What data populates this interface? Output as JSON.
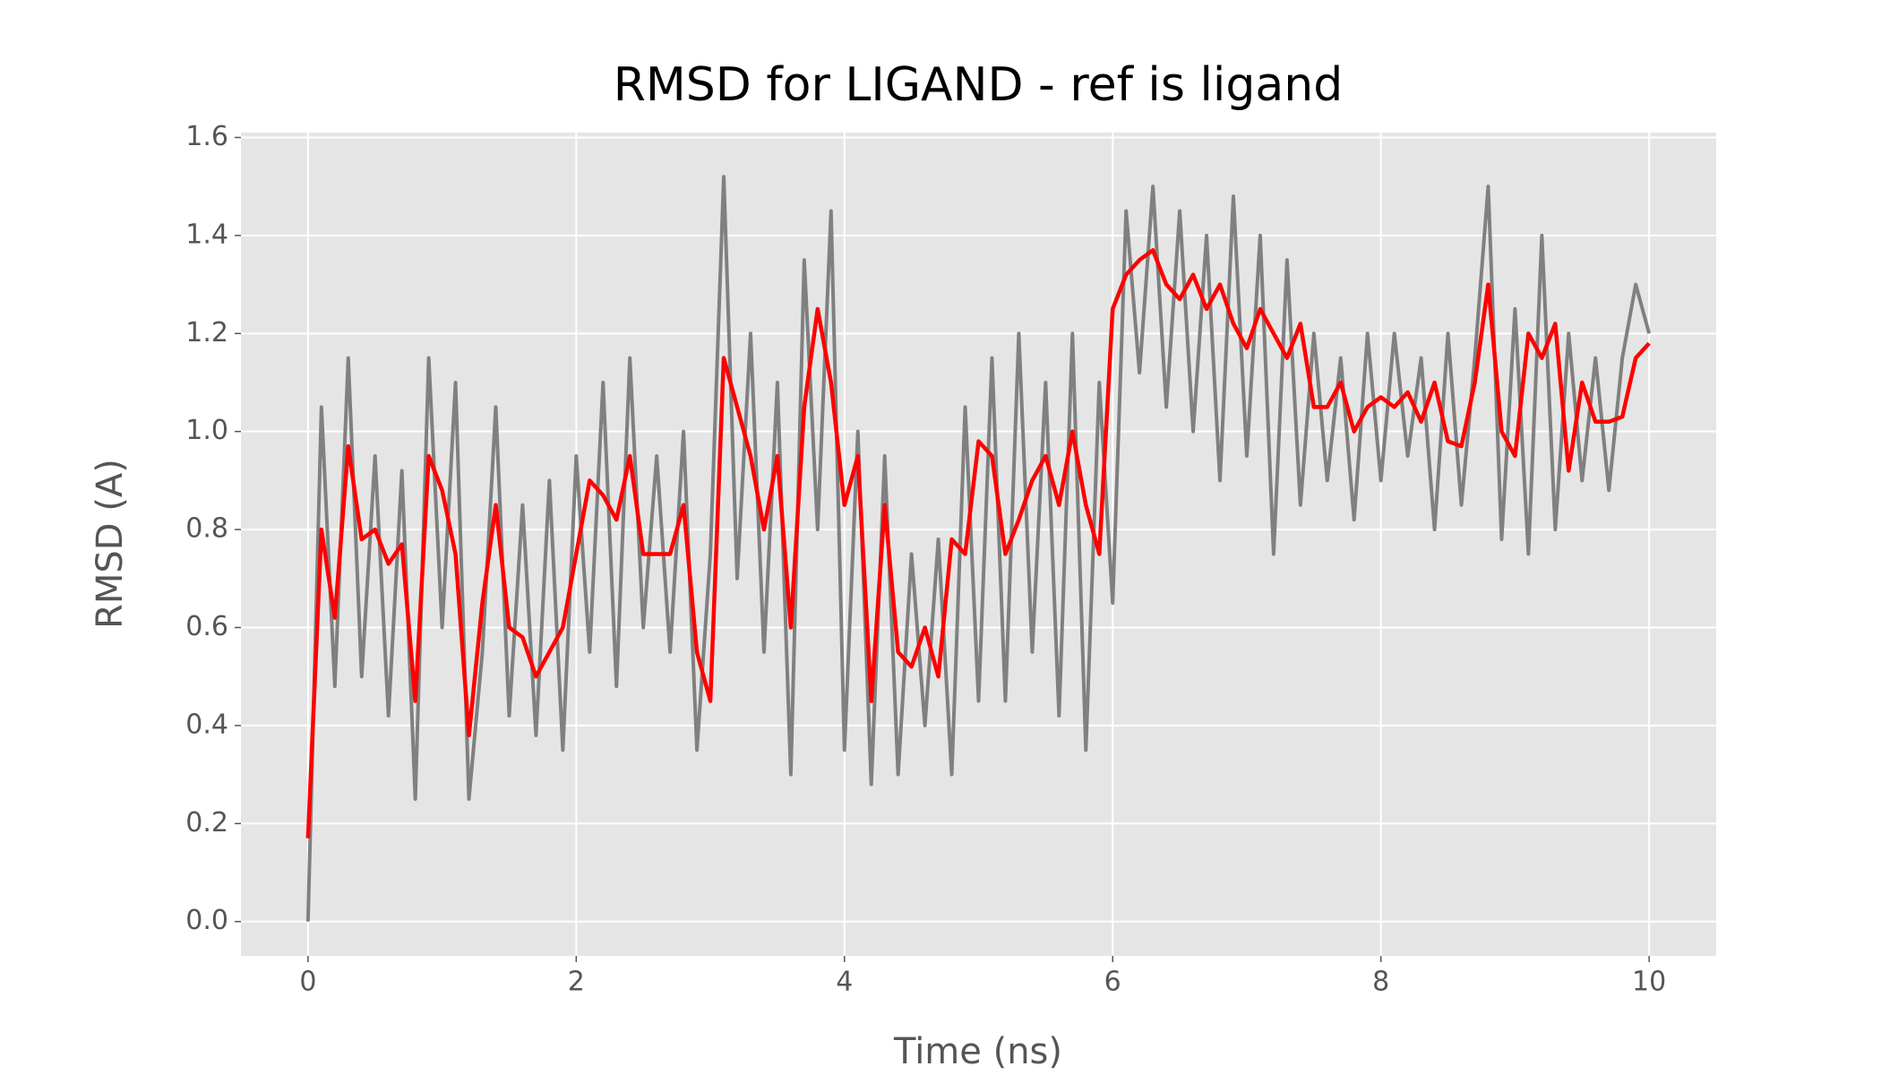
{
  "chart_data": {
    "type": "line",
    "title": "RMSD for LIGAND - ref is ligand",
    "xlabel": "Time (ns)",
    "ylabel": "RMSD (A)",
    "x": [
      0,
      0.1,
      0.2,
      0.3,
      0.4,
      0.5,
      0.6,
      0.7,
      0.8,
      0.9,
      1,
      1.1,
      1.2,
      1.3,
      1.4,
      1.5,
      1.6,
      1.7,
      1.8,
      1.9,
      2,
      2.1,
      2.2,
      2.3,
      2.4,
      2.5,
      2.6,
      2.7,
      2.8,
      2.9,
      3,
      3.1,
      3.2,
      3.3,
      3.4,
      3.5,
      3.6,
      3.7,
      3.8,
      3.9,
      4,
      4.1,
      4.2,
      4.3,
      4.4,
      4.5,
      4.6,
      4.7,
      4.8,
      4.9,
      5,
      5.1,
      5.2,
      5.3,
      5.4,
      5.5,
      5.6,
      5.7,
      5.8,
      5.9,
      6,
      6.1,
      6.2,
      6.3,
      6.4,
      6.5,
      6.6,
      6.7,
      6.8,
      6.9,
      7,
      7.1,
      7.2,
      7.3,
      7.4,
      7.5,
      7.6,
      7.7,
      7.8,
      7.9,
      8,
      8.1,
      8.2,
      8.3,
      8.4,
      8.5,
      8.6,
      8.7,
      8.8,
      8.9,
      9,
      9.1,
      9.2,
      9.3,
      9.4,
      9.5,
      9.6,
      9.7,
      9.8,
      9.9,
      10
    ],
    "series": [
      {
        "color": "#808080",
        "values": [
          0,
          1.05,
          0.48,
          1.15,
          0.5,
          0.95,
          0.42,
          0.92,
          0.25,
          1.15,
          0.6,
          1.1,
          0.25,
          0.55,
          1.05,
          0.42,
          0.85,
          0.38,
          0.9,
          0.35,
          0.95,
          0.55,
          1.1,
          0.48,
          1.15,
          0.6,
          0.95,
          0.55,
          1,
          0.35,
          0.75,
          1.52,
          0.7,
          1.2,
          0.55,
          1.1,
          0.3,
          1.35,
          0.8,
          1.45,
          0.35,
          1,
          0.28,
          0.95,
          0.3,
          0.75,
          0.4,
          0.78,
          0.3,
          1.05,
          0.45,
          1.15,
          0.45,
          1.2,
          0.55,
          1.1,
          0.42,
          1.2,
          0.35,
          1.1,
          0.65,
          1.45,
          1.12,
          1.5,
          1.05,
          1.45,
          1,
          1.4,
          0.9,
          1.48,
          0.95,
          1.4,
          0.75,
          1.35,
          0.85,
          1.2,
          0.9,
          1.15,
          0.82,
          1.2,
          0.9,
          1.2,
          0.95,
          1.15,
          0.8,
          1.2,
          0.85,
          1.15,
          1.5,
          0.78,
          1.25,
          0.75,
          1.4,
          0.8,
          1.2,
          0.9,
          1.15,
          0.88,
          1.15,
          1.3,
          1.2
        ]
      },
      {
        "color": "#ff0000",
        "values": [
          0.17,
          0.8,
          0.62,
          0.97,
          0.78,
          0.8,
          0.73,
          0.77,
          0.45,
          0.95,
          0.88,
          0.75,
          0.38,
          0.65,
          0.85,
          0.6,
          0.58,
          0.5,
          0.55,
          0.6,
          0.75,
          0.9,
          0.87,
          0.82,
          0.95,
          0.75,
          0.75,
          0.75,
          0.85,
          0.55,
          0.45,
          1.15,
          1.05,
          0.95,
          0.8,
          0.95,
          0.6,
          1.05,
          1.25,
          1.1,
          0.85,
          0.95,
          0.45,
          0.85,
          0.55,
          0.52,
          0.6,
          0.5,
          0.78,
          0.75,
          0.98,
          0.95,
          0.75,
          0.82,
          0.9,
          0.95,
          0.85,
          1,
          0.85,
          0.75,
          1.25,
          1.32,
          1.35,
          1.37,
          1.3,
          1.27,
          1.32,
          1.25,
          1.3,
          1.22,
          1.17,
          1.25,
          1.2,
          1.15,
          1.22,
          1.05,
          1.05,
          1.1,
          1,
          1.05,
          1.07,
          1.05,
          1.08,
          1.02,
          1.1,
          0.98,
          0.97,
          1.1,
          1.3,
          1,
          0.95,
          1.2,
          1.15,
          1.22,
          0.92,
          1.1,
          1.02,
          1.02,
          1.03,
          1.15,
          1.18
        ]
      }
    ],
    "xlim": [
      -0.5,
      10.5
    ],
    "ylim": [
      -0.07,
      1.61
    ],
    "xticks": [
      0,
      2,
      4,
      6,
      8,
      10
    ],
    "yticks": [
      {
        "value": 0,
        "label": "0.0"
      },
      0.2,
      0.4,
      0.6,
      0.8,
      {
        "value": 1,
        "label": "1.0"
      },
      1.2,
      1.4,
      1.6
    ],
    "grid": true,
    "background": "#e5e5e5"
  }
}
